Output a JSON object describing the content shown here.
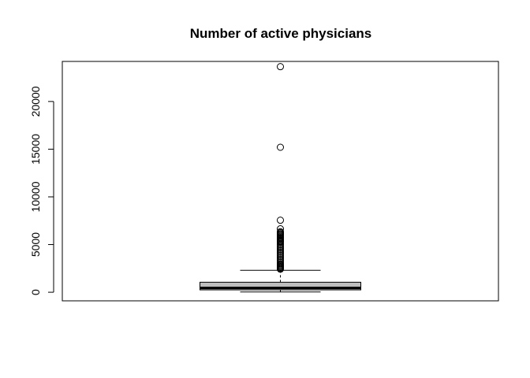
{
  "chart_data": {
    "type": "boxplot",
    "title": "Number of active physicians",
    "xlabel": "",
    "ylabel": "",
    "ylim": [
      -900,
      24200
    ],
    "yticks": [
      0,
      5000,
      10000,
      15000,
      20000
    ],
    "ytick_labels": [
      "0",
      "5000",
      "10000",
      "15000",
      "20000"
    ],
    "box": {
      "min": 30,
      "q1": 250,
      "median": 450,
      "q3": 1050,
      "whisker_high": 2300,
      "fill": "#bebebe"
    },
    "outliers": [
      23650,
      15200,
      7550,
      6650,
      6350,
      6250,
      6150,
      6050,
      5950,
      5850,
      5750,
      5650,
      5550,
      5450,
      5350,
      5250,
      5100,
      4950,
      4800,
      4650,
      4500,
      4350,
      4200,
      4050,
      3900,
      3750,
      3600,
      3450,
      3300,
      3150,
      3000,
      2900,
      2800,
      2700,
      2600,
      2500,
      2420
    ],
    "grid": false,
    "legend": "none"
  }
}
